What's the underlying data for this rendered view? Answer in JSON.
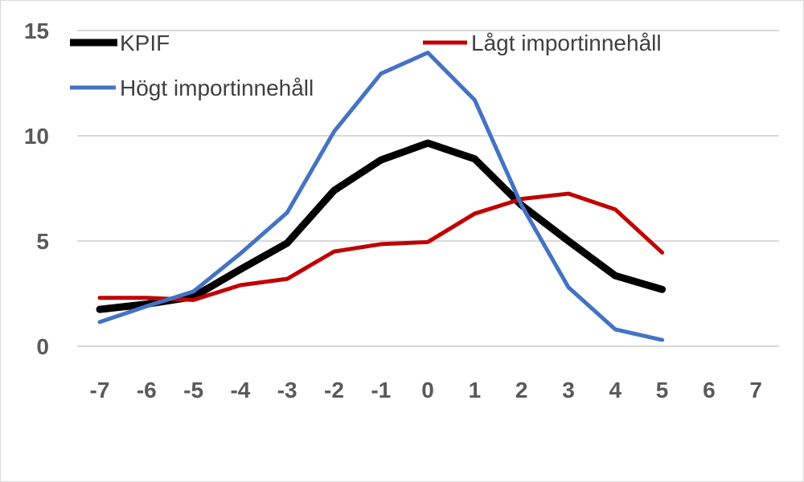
{
  "chart_data": {
    "type": "line",
    "title": "",
    "xlabel": "",
    "ylabel": "",
    "x": [
      -7,
      -6,
      -5,
      -4,
      -3,
      -2,
      -1,
      0,
      1,
      2,
      3,
      4,
      5,
      6,
      7
    ],
    "ylim": [
      0,
      15
    ],
    "yticks": [
      0,
      5,
      10,
      15
    ],
    "grid": "horizontal",
    "legend_placement": "top",
    "series": [
      {
        "name": "KPIF",
        "color": "#000000",
        "values": [
          1.75,
          2.0,
          2.35,
          3.65,
          4.9,
          7.4,
          8.85,
          9.65,
          8.9,
          6.7,
          5.0,
          3.35,
          2.7,
          null,
          null
        ]
      },
      {
        "name": "Lågt importinnehåll",
        "color": "#C00000",
        "values": [
          2.3,
          2.3,
          2.2,
          2.9,
          3.2,
          4.5,
          4.85,
          4.95,
          6.3,
          7.0,
          7.25,
          6.5,
          4.45,
          null,
          null
        ]
      },
      {
        "name": "Högt importinnehåll",
        "color": "#4472C4",
        "values": [
          1.15,
          1.9,
          2.6,
          4.4,
          6.35,
          10.2,
          12.95,
          13.95,
          11.7,
          6.7,
          2.8,
          0.8,
          0.3,
          null,
          null
        ]
      }
    ]
  }
}
